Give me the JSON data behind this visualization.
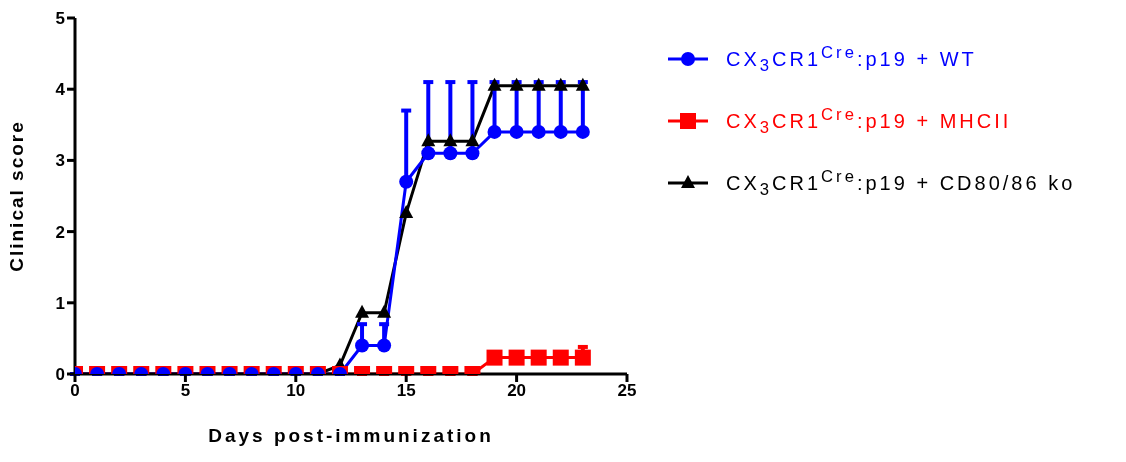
{
  "chart_data": {
    "type": "line",
    "xlabel": "Days post-immunization",
    "ylabel": "Clinical score",
    "x": [
      0,
      1,
      2,
      3,
      4,
      5,
      6,
      7,
      8,
      9,
      10,
      11,
      12,
      13,
      14,
      15,
      16,
      17,
      18,
      19,
      20,
      21,
      22,
      23
    ],
    "xlim": [
      0,
      25
    ],
    "xticks": [
      0,
      5,
      10,
      15,
      20,
      25
    ],
    "ylim": [
      0,
      5
    ],
    "yticks": [
      0,
      1,
      2,
      3,
      4,
      5
    ],
    "grid": false,
    "legend": "top right",
    "line_style": "solid",
    "series": [
      {
        "name": "CX$_{3}$CR1$^{Cre}$:p19 + WT",
        "color": "#0000ff",
        "marker": "circle",
        "values": [
          0,
          0,
          0,
          0,
          0,
          0,
          0,
          0,
          0,
          0,
          0,
          0,
          0,
          0.4,
          0.4,
          2.7,
          3.1,
          3.1,
          3.1,
          3.4,
          3.4,
          3.4,
          3.4,
          3.4
        ],
        "errors": [
          null,
          null,
          null,
          null,
          null,
          null,
          null,
          null,
          null,
          null,
          null,
          null,
          null,
          [
            0.4,
            0.7
          ],
          [
            0.4,
            0.7
          ],
          [
            2.7,
            3.7
          ],
          [
            3.1,
            4.1
          ],
          [
            3.1,
            4.1
          ],
          [
            3.1,
            4.1
          ],
          [
            3.4,
            4.1
          ],
          [
            3.4,
            4.1
          ],
          [
            3.4,
            4.1
          ],
          [
            3.4,
            4.1
          ],
          [
            3.4,
            4.1
          ]
        ]
      },
      {
        "name": "CX$_{3}$CR1$^{Cre}$:p19 + MHCII",
        "color": "#ff0000",
        "marker": "square",
        "values": [
          0,
          0,
          0,
          0,
          0,
          0,
          0,
          0,
          0,
          0,
          0,
          0,
          0,
          0,
          0,
          0,
          0,
          0,
          0,
          0.23,
          0.23,
          0.23,
          0.23,
          0.23
        ],
        "errors": [
          null,
          null,
          null,
          null,
          null,
          null,
          null,
          null,
          null,
          null,
          null,
          null,
          null,
          null,
          null,
          null,
          null,
          null,
          null,
          null,
          null,
          null,
          null,
          [
            0.23,
            0.38
          ]
        ]
      },
      {
        "name": "CX$_{3}$CR1$^{Cre}$:p19 + CD80/86 ko",
        "color": "#000000",
        "marker": "triangle",
        "values": [
          0,
          0,
          0,
          0,
          0,
          0,
          0,
          0,
          0,
          0,
          0,
          0,
          0.12,
          0.86,
          0.86,
          2.26,
          3.27,
          3.27,
          3.27,
          4.05,
          4.05,
          4.05,
          4.05,
          4.05
        ]
      }
    ]
  }
}
